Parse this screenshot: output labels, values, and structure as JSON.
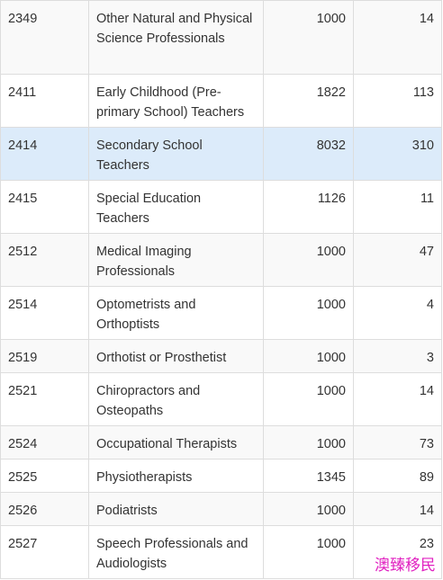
{
  "table": {
    "rows": [
      [
        "2349",
        "Other Natural and Physical Science Professionals",
        1000,
        14
      ],
      [
        "2411",
        "Early Childhood (Pre-primary School) Teachers",
        1822,
        113
      ],
      [
        "2414",
        "Secondary School Teachers",
        8032,
        310
      ],
      [
        "2415",
        "Special Education Teachers",
        1126,
        11
      ],
      [
        "2512",
        "Medical Imaging Professionals",
        1000,
        47
      ],
      [
        "2514",
        "Optometrists and Orthoptists",
        1000,
        4
      ],
      [
        "2519",
        "Orthotist or Prosthetist",
        1000,
        3
      ],
      [
        "2521",
        "Chiropractors and Osteopaths",
        1000,
        14
      ],
      [
        "2524",
        "Occupational Therapists",
        1000,
        73
      ],
      [
        "2525",
        "Physiotherapists",
        1345,
        89
      ],
      [
        "2526",
        "Podiatrists",
        1000,
        14
      ],
      [
        "2527",
        "Speech Professionals and Audiologists",
        1000,
        23
      ]
    ]
  },
  "watermark": "澳臻移民"
}
